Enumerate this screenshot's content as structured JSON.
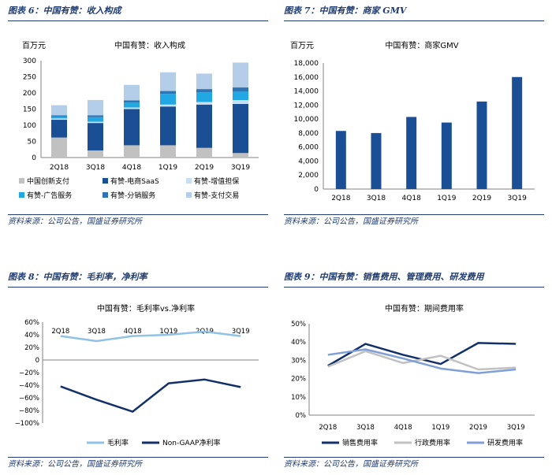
{
  "source_text": "资料来源：公司公告，国盛证券研究所",
  "colors": {
    "darkblue": "#1b4f95",
    "navy": "#12306a",
    "cyan": "#1fa8e4",
    "gray": "#c1c1c1",
    "lightblue": "#9dc3e6",
    "sky": "#8fc2e6",
    "periwinkle": "#7f9fd8",
    "title": "#1f3b6f"
  },
  "chart_data": [
    {
      "id": "fig6",
      "panel_title": "图表 6：中国有赞：收入构成",
      "type": "bar",
      "stacked": true,
      "title": "中国有赞：收入构成",
      "ylabel": "百万元",
      "ylim": [
        0,
        300
      ],
      "yticks": [
        0,
        50,
        100,
        150,
        200,
        250,
        300
      ],
      "categories": [
        "2Q18",
        "3Q18",
        "4Q18",
        "1Q19",
        "2Q19",
        "3Q19"
      ],
      "series": [
        {
          "name": "中国创新支付",
          "color": "#c1c1c1",
          "values": [
            62,
            22,
            38,
            38,
            30,
            14
          ]
        },
        {
          "name": "有赞-电商SaaS",
          "color": "#1b4f95",
          "values": [
            55,
            85,
            112,
            120,
            134,
            152
          ]
        },
        {
          "name": "有赞-增值担保",
          "color": "#c7dff2",
          "values": [
            4,
            4,
            5,
            6,
            8,
            12
          ]
        },
        {
          "name": "有赞-广告服务",
          "color": "#1fa8e4",
          "values": [
            6,
            14,
            15,
            33,
            30,
            26
          ]
        },
        {
          "name": "有赞-分销服务",
          "color": "#2e75b6",
          "values": [
            4,
            6,
            7,
            9,
            10,
            13
          ]
        },
        {
          "name": "有赞-支付交易",
          "color": "#b4cde8",
          "values": [
            31,
            47,
            48,
            58,
            48,
            77
          ]
        }
      ]
    },
    {
      "id": "fig7",
      "panel_title": "图表 7：中国有赞：商家 GMV",
      "type": "bar",
      "title": "中国有赞：商家GMV",
      "ylabel": "百万元",
      "ylim": [
        0,
        18000
      ],
      "yticks": [
        0,
        2000,
        4000,
        6000,
        8000,
        10000,
        12000,
        14000,
        16000,
        18000
      ],
      "ytick_labels": [
        "0",
        "2,000",
        "4,000",
        "6,000",
        "8,000",
        "10,000",
        "12,000",
        "14,000",
        "16,000",
        "18,000"
      ],
      "categories": [
        "2Q18",
        "3Q18",
        "4Q18",
        "1Q19",
        "2Q19",
        "3Q19"
      ],
      "values": [
        8300,
        8000,
        10300,
        9500,
        12500,
        16000
      ]
    },
    {
      "id": "fig8",
      "panel_title": "图表 8：中国有赞：毛利率，净利率",
      "type": "line",
      "title": "中国有赞：毛利率vs.净利率",
      "ylim": [
        -100,
        60
      ],
      "yticks": [
        60,
        40,
        20,
        0,
        -20,
        -40,
        -60,
        -80,
        -100
      ],
      "ytick_labels": [
        "60%",
        "40%",
        "20%",
        "0",
        "−20%",
        "−40%",
        "−60%",
        "−80%",
        "−100%"
      ],
      "categories": [
        "2Q18",
        "3Q18",
        "4Q18",
        "1Q19",
        "2Q19",
        "3Q19"
      ],
      "series": [
        {
          "name": "毛利率",
          "color": "#8fc2e6",
          "values": [
            38,
            30,
            38,
            40,
            45,
            38
          ]
        },
        {
          "name": "Non-GAAP净利率",
          "color": "#12306a",
          "values": [
            -42,
            -63,
            -82,
            -37,
            -31,
            -43
          ]
        }
      ]
    },
    {
      "id": "fig9",
      "panel_title": "图表 9：中国有赞：销售费用、管理费用、研发费用",
      "type": "line",
      "title": "中国有赞：期间费用率",
      "ylim": [
        0,
        50
      ],
      "yticks": [
        0,
        10,
        20,
        30,
        40,
        50
      ],
      "ytick_labels": [
        "0%",
        "10%",
        "20%",
        "30%",
        "40%",
        "50%"
      ],
      "categories": [
        "2Q18",
        "3Q18",
        "4Q18",
        "1Q19",
        "2Q19",
        "3Q19"
      ],
      "series": [
        {
          "name": "销售费用率",
          "color": "#12306a",
          "values": [
            27,
            39,
            33,
            28,
            39.5,
            39
          ]
        },
        {
          "name": "行政费用率",
          "color": "#c1c1c1",
          "values": [
            26.5,
            35,
            28.5,
            32.5,
            25,
            26
          ]
        },
        {
          "name": "研发费用率",
          "color": "#7f9fd8",
          "values": [
            33,
            36,
            31,
            25.5,
            23,
            25
          ]
        }
      ]
    }
  ]
}
